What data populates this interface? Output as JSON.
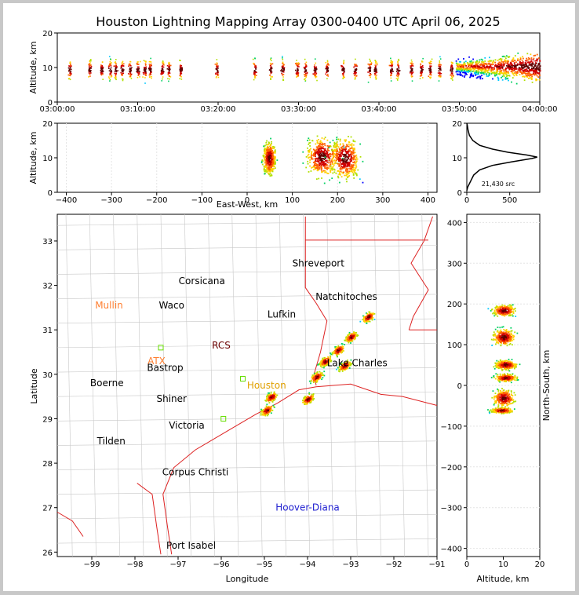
{
  "chart_data": [
    {
      "type": "scatter",
      "panel": "time-altitude",
      "title": "Houston Lightning Mapping Array 0300-0400 UTC April 06, 2025",
      "xlabel": "",
      "ylabel": "Altitude, km",
      "ylim": [
        0,
        20
      ],
      "x_ticks": [
        "03:00:00",
        "03:10:00",
        "03:20:00",
        "03:30:00",
        "03:40:00",
        "03:50:00",
        "04:00:00"
      ],
      "y_ticks": [
        "0",
        "10",
        "20"
      ],
      "x_minutes_range": [
        0,
        60
      ],
      "source_bursts_minutes": [
        1.5,
        4.0,
        5.5,
        6.5,
        7.2,
        8.0,
        9.0,
        10.0,
        10.8,
        11.5,
        13.0,
        13.8,
        15.3,
        19.8,
        24.5,
        26.5,
        28.0,
        29.8,
        30.8,
        32.0,
        33.5,
        35.5,
        37.0,
        38.8,
        39.5,
        41.5,
        42.3,
        44.0,
        45.2,
        46.3,
        47.5,
        49.0
      ],
      "dense_region_minutes": [
        49.5,
        60
      ]
    },
    {
      "type": "scatter",
      "panel": "east-west-altitude",
      "xlabel": "East-West, km",
      "ylabel": "Altitude, km",
      "xlim": [
        -420,
        420
      ],
      "ylim": [
        0,
        20
      ],
      "x_ticks": [
        "−400",
        "−300",
        "−200",
        "−100",
        "0",
        "100",
        "200",
        "300",
        "400"
      ],
      "y_ticks": [
        "0",
        "10",
        "20"
      ],
      "clusters": [
        {
          "x": 48,
          "y": 10,
          "spread_x": 12,
          "spread_y": 4
        },
        {
          "x": 165,
          "y": 10.5,
          "spread_x": 30,
          "spread_y": 5
        },
        {
          "x": 215,
          "y": 10,
          "spread_x": 28,
          "spread_y": 5
        }
      ]
    },
    {
      "type": "line",
      "panel": "altitude-histogram",
      "xlim": [
        0,
        850
      ],
      "ylim": [
        0,
        20
      ],
      "x_ticks": [
        "0",
        "500"
      ],
      "y_ticks": [
        "0",
        "10",
        "20"
      ],
      "annotation": "21,430 src",
      "profile": [
        [
          0,
          0.5
        ],
        [
          10,
          1.5
        ],
        [
          40,
          3
        ],
        [
          80,
          5
        ],
        [
          150,
          6.5
        ],
        [
          300,
          7.8
        ],
        [
          520,
          8.8
        ],
        [
          760,
          9.8
        ],
        [
          820,
          10.2
        ],
        [
          700,
          10.8
        ],
        [
          480,
          11.6
        ],
        [
          300,
          12.5
        ],
        [
          150,
          13.6
        ],
        [
          70,
          15
        ],
        [
          30,
          16.5
        ],
        [
          15,
          18
        ],
        [
          5,
          19.5
        ],
        [
          0,
          20
        ]
      ]
    },
    {
      "type": "scatter",
      "panel": "plan-view-map",
      "xlabel": "Longitude",
      "ylabel": "Latitude",
      "xlim": [
        -99.8,
        -91
      ],
      "ylim": [
        25.9,
        33.6
      ],
      "x_ticks": [
        "−99",
        "−98",
        "−97",
        "−96",
        "−95",
        "−94",
        "−93",
        "−92",
        "−91"
      ],
      "y_ticks": [
        "26",
        "27",
        "28",
        "29",
        "30",
        "31",
        "32",
        "33"
      ],
      "storm_cells": [
        {
          "lon": -92.6,
          "lat": 31.3
        },
        {
          "lon": -93.0,
          "lat": 30.85
        },
        {
          "lon": -93.3,
          "lat": 30.55
        },
        {
          "lon": -93.6,
          "lat": 30.3
        },
        {
          "lon": -93.15,
          "lat": 30.2
        },
        {
          "lon": -93.8,
          "lat": 29.95
        },
        {
          "lon": -94.0,
          "lat": 29.45
        },
        {
          "lon": -94.85,
          "lat": 29.5
        },
        {
          "lon": -94.95,
          "lat": 29.2
        }
      ]
    },
    {
      "type": "scatter",
      "panel": "altitude-north-south",
      "xlabel": "Altitude, km",
      "ylabel": "North-South, km",
      "xlim": [
        0,
        20
      ],
      "ylim": [
        -420,
        420
      ],
      "x_ticks": [
        "0",
        "10",
        "20"
      ],
      "y_ticks": [
        "−400",
        "−300",
        "−200",
        "−100",
        "0",
        "100",
        "200",
        "300",
        "400"
      ],
      "clusters": [
        {
          "y": 185,
          "x": 10,
          "spread_y": 12
        },
        {
          "y": 120,
          "x": 10,
          "spread_y": 18
        },
        {
          "y": 52,
          "x": 10.5,
          "spread_y": 10
        },
        {
          "y": 20,
          "x": 10.5,
          "spread_y": 8
        },
        {
          "y": -30,
          "x": 10,
          "spread_y": 18
        },
        {
          "y": -60,
          "x": 9.5,
          "spread_y": 6
        }
      ]
    }
  ],
  "map_labels": [
    {
      "text": "Shreveport",
      "lon": -93.75,
      "lat": 32.5,
      "color": "#000000"
    },
    {
      "text": "Corsicana",
      "lon": -96.45,
      "lat": 32.1,
      "color": "#000000"
    },
    {
      "text": "Natchitoches",
      "lon": -93.1,
      "lat": 31.75,
      "color": "#000000"
    },
    {
      "text": "Mullin",
      "lon": -98.6,
      "lat": 31.55,
      "color": "#ff7f30"
    },
    {
      "text": "Waco",
      "lon": -97.15,
      "lat": 31.55,
      "color": "#000000"
    },
    {
      "text": "Lufkin",
      "lon": -94.6,
      "lat": 31.35,
      "color": "#000000"
    },
    {
      "text": "RCS",
      "lon": -96.0,
      "lat": 30.65,
      "color": "#6b0000"
    },
    {
      "text": "ATX",
      "lon": -97.5,
      "lat": 30.3,
      "color": "#ff7f30"
    },
    {
      "text": "Bastrop",
      "lon": -97.3,
      "lat": 30.15,
      "color": "#000000"
    },
    {
      "text": "Lake Charles",
      "lon": -92.85,
      "lat": 30.25,
      "color": "#000000"
    },
    {
      "text": "Boerne",
      "lon": -98.65,
      "lat": 29.8,
      "color": "#000000"
    },
    {
      "text": "Houston",
      "lon": -94.95,
      "lat": 29.75,
      "color": "#e0a000"
    },
    {
      "text": "Shiner",
      "lon": -97.15,
      "lat": 29.45,
      "color": "#000000"
    },
    {
      "text": "Victoria",
      "lon": -96.8,
      "lat": 28.85,
      "color": "#000000"
    },
    {
      "text": "Tilden",
      "lon": -98.55,
      "lat": 28.5,
      "color": "#000000"
    },
    {
      "text": "Corpus Christi",
      "lon": -96.6,
      "lat": 27.8,
      "color": "#000000"
    },
    {
      "text": "Hoover-Diana",
      "lon": -94.0,
      "lat": 27.0,
      "color": "#2020d0"
    },
    {
      "text": "Port Isabel",
      "lon": -96.7,
      "lat": 26.15,
      "color": "#000000"
    }
  ],
  "colors": {
    "state_border": "#dd2222",
    "county_border": "#c8c8c8",
    "density_scale": [
      "#0000ff",
      "#00c8ff",
      "#00d060",
      "#b0e000",
      "#ffd000",
      "#ff6000",
      "#d00000",
      "#600000"
    ]
  }
}
